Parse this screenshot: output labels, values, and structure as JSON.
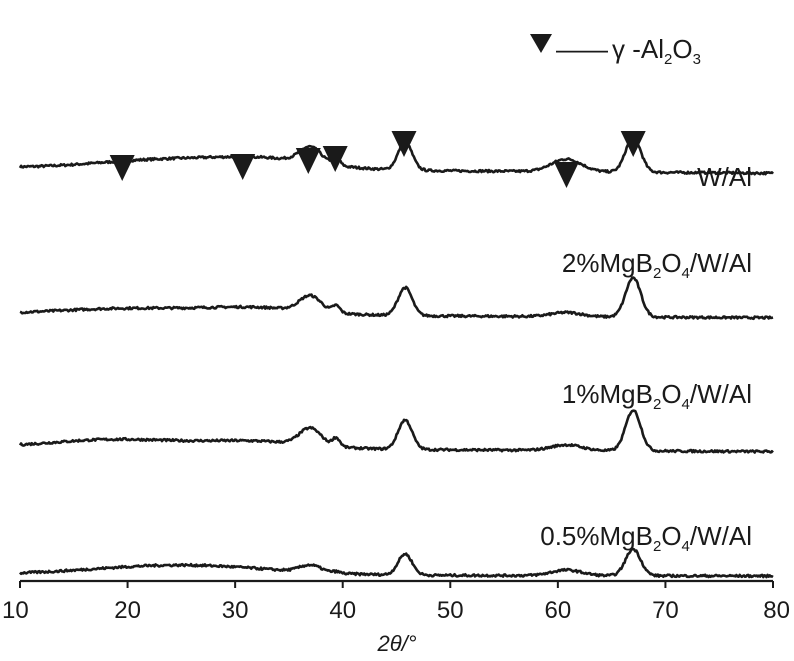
{
  "chart_data": {
    "type": "line",
    "title": "",
    "xlabel": "2θ/°",
    "ylabel": "",
    "xlim": [
      10,
      80
    ],
    "xticks": [
      10,
      20,
      30,
      40,
      50,
      60,
      70,
      80
    ],
    "grid": false,
    "legend": {
      "placement": "top-right",
      "symbol": "▼",
      "dash": "——",
      "prefix": "γ -Al",
      "sub1": "2",
      "mid": "O",
      "sub2": "3"
    },
    "marker_positions_2theta": [
      19.5,
      30.7,
      36.8,
      39.3,
      45.7,
      60.8,
      67.0
    ],
    "peaks": [
      {
        "center": 37.0,
        "width": 1.0
      },
      {
        "center": 39.4,
        "width": 0.35
      },
      {
        "center": 45.8,
        "width": 0.65
      },
      {
        "center": 60.8,
        "width": 1.4
      },
      {
        "center": 67.0,
        "width": 0.7
      }
    ],
    "series": [
      {
        "name": "W/Al",
        "label_parts": [
          "W/Al"
        ],
        "baseline_left": 0.8,
        "baseline_right": 0.6,
        "hump": [
          {
            "center": 23,
            "height": 0.3,
            "width": 6
          },
          {
            "center": 33,
            "height": 0.35,
            "width": 5
          }
        ],
        "peak_heights": [
          0.55,
          0.25,
          1.0,
          0.45,
          1.25
        ]
      },
      {
        "name": "2%MgB2O4/W/Al",
        "label_parts": [
          "2%MgB",
          "2",
          "O",
          "4",
          "/W/Al"
        ],
        "baseline_left": 0.3,
        "baseline_right": 0.15,
        "hump": [
          {
            "center": 20,
            "height": 0.2,
            "width": 6
          },
          {
            "center": 32,
            "height": 0.25,
            "width": 5
          }
        ],
        "peak_heights": [
          0.55,
          0.25,
          1.0,
          0.15,
          1.4
        ]
      },
      {
        "name": "1%MgB2O4/W/Al",
        "label_parts": [
          "1%MgB",
          "2",
          "O",
          "4",
          "/W/Al"
        ],
        "baseline_left": 0.2,
        "baseline_right": 0.05,
        "hump": [
          {
            "center": 19,
            "height": 0.3,
            "width": 6
          },
          {
            "center": 32,
            "height": 0.25,
            "width": 5
          }
        ],
        "peak_heights": [
          0.6,
          0.3,
          1.05,
          0.2,
          1.45
        ]
      },
      {
        "name": "0.5%MgB2O4/W/Al",
        "label_parts": [
          "0.5%MgB",
          "2",
          "O",
          "4",
          "/W/Al"
        ],
        "baseline_left": 0.05,
        "baseline_right": 0.0,
        "hump": [
          {
            "center": 25,
            "height": 0.35,
            "width": 8
          }
        ],
        "peak_heights": [
          0.25,
          0.05,
          0.75,
          0.2,
          0.95
        ]
      }
    ]
  }
}
